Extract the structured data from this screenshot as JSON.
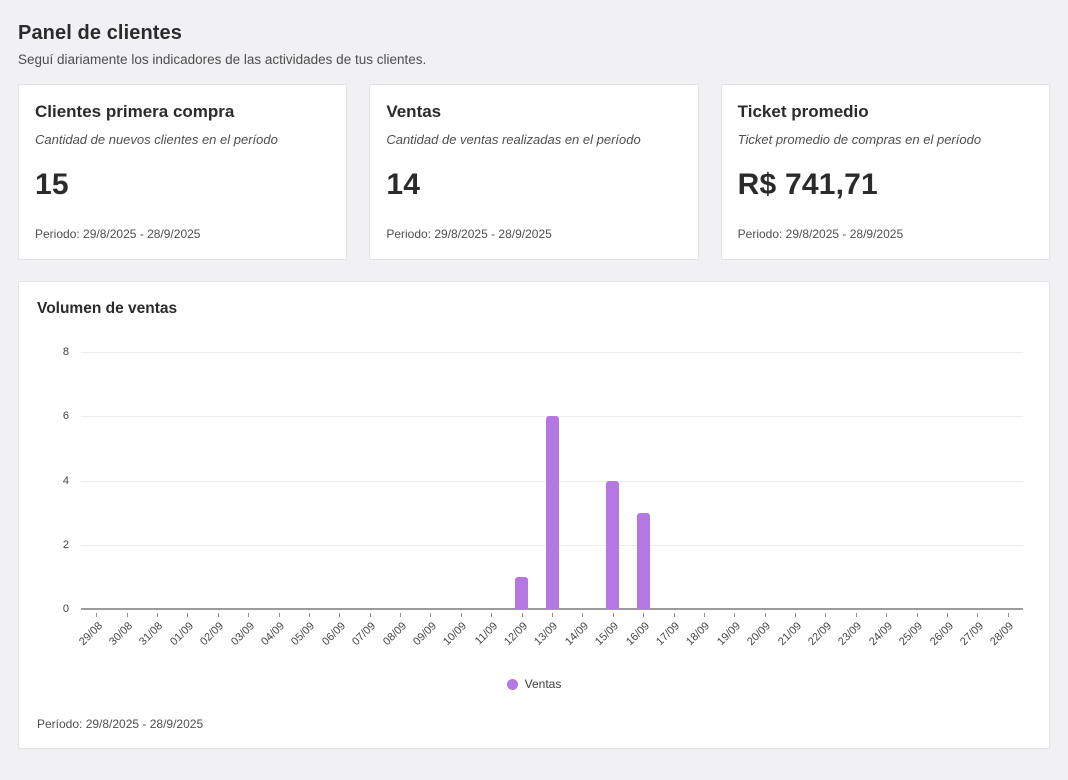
{
  "header": {
    "title": "Panel de clientes",
    "subtitle": "Seguí diariamente los indicadores de las actividades de tus clientes."
  },
  "cards": [
    {
      "title": "Clientes primera compra",
      "description": "Cantidad de nuevos clientes en el período",
      "value": "15",
      "period": "Periodo: 29/8/2025 - 28/9/2025"
    },
    {
      "title": "Ventas",
      "description": "Cantidad de ventas realizadas en el período",
      "value": "14",
      "period": "Periodo: 29/8/2025 - 28/9/2025"
    },
    {
      "title": "Ticket promedio",
      "description": "Ticket promedio de compras en el período",
      "value": "R$ 741,71",
      "period": "Periodo: 29/8/2025 - 28/9/2025"
    }
  ],
  "chart": {
    "title": "Volumen de ventas",
    "period": "Período: 29/8/2025 - 28/9/2025",
    "legend": [
      {
        "label": "Ventas",
        "color": "#b577e2"
      }
    ],
    "chart_data": {
      "type": "bar",
      "title": "Volumen de ventas",
      "categories": [
        "29/08",
        "30/08",
        "31/08",
        "01/09",
        "02/09",
        "03/09",
        "04/09",
        "05/09",
        "06/09",
        "07/09",
        "08/09",
        "09/09",
        "10/09",
        "11/09",
        "12/09",
        "13/09",
        "14/09",
        "15/09",
        "16/09",
        "17/09",
        "18/09",
        "19/09",
        "20/09",
        "21/09",
        "22/09",
        "23/09",
        "24/09",
        "25/09",
        "26/09",
        "27/09",
        "28/09"
      ],
      "series": [
        {
          "name": "Ventas",
          "color": "#b577e2",
          "values": [
            0,
            0,
            0,
            0,
            0,
            0,
            0,
            0,
            0,
            0,
            0,
            0,
            0,
            0,
            1,
            6,
            0,
            4,
            3,
            0,
            0,
            0,
            0,
            0,
            0,
            0,
            0,
            0,
            0,
            0,
            0
          ]
        }
      ],
      "xlabel": "",
      "ylabel": "",
      "ylim": [
        0,
        8
      ],
      "yticks": [
        0,
        2,
        4,
        6,
        8
      ],
      "grid": true,
      "legend_position": "bottom",
      "colors": {
        "bar": "#b577e2",
        "gridline": "#ededef",
        "axis_baseline": "#9b9b9b",
        "tick_text": "#474747"
      }
    }
  }
}
